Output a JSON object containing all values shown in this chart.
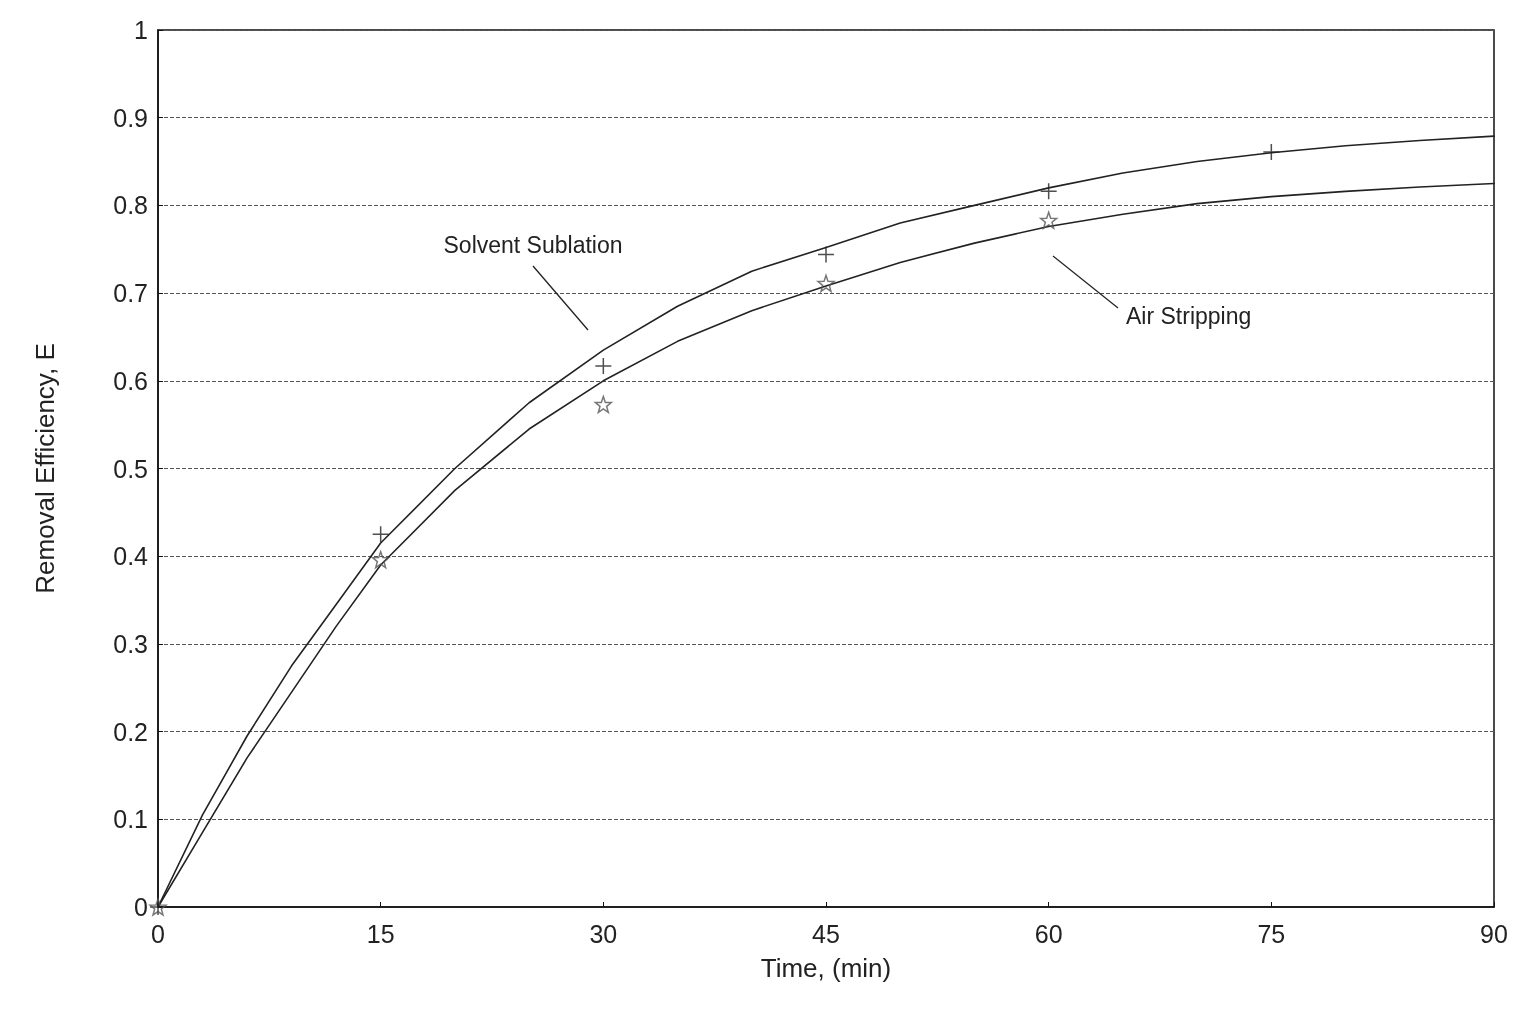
{
  "chart_data": {
    "type": "line",
    "xlabel": "Time, (min)",
    "ylabel": "Removal Efficiency, E",
    "xlim": [
      0,
      90
    ],
    "xticks": [
      0,
      15,
      30,
      45,
      60,
      75,
      90
    ],
    "ylim": [
      0,
      1
    ],
    "yticks": [
      0,
      0.1,
      0.2,
      0.3,
      0.4,
      0.5,
      0.6,
      0.7,
      0.8,
      0.9,
      1
    ],
    "grid": "y",
    "series": [
      {
        "color": "#222222",
        "marker": "none",
        "x": [
          0,
          3,
          6,
          9,
          12,
          15,
          20,
          25,
          30,
          35,
          40,
          45,
          50,
          55,
          60,
          65,
          70,
          75,
          80,
          85,
          90
        ],
        "values": [
          0,
          0.105,
          0.195,
          0.275,
          0.345,
          0.415,
          0.5,
          0.575,
          0.635,
          0.685,
          0.725,
          0.752,
          0.78,
          0.8,
          0.82,
          0.837,
          0.85,
          0.86,
          0.868,
          0.874,
          0.879
        ]
      },
      {
        "color": "#222222",
        "marker": "none",
        "x": [
          0,
          3,
          6,
          9,
          12,
          15,
          20,
          25,
          30,
          35,
          40,
          45,
          50,
          55,
          60,
          65,
          70,
          75,
          80,
          85,
          90
        ],
        "values": [
          0,
          0.085,
          0.17,
          0.245,
          0.32,
          0.39,
          0.475,
          0.545,
          0.6,
          0.645,
          0.68,
          0.708,
          0.735,
          0.757,
          0.776,
          0.79,
          0.802,
          0.81,
          0.816,
          0.821,
          0.825
        ]
      },
      {
        "type": "scatter",
        "color": "#222222",
        "marker": "cross",
        "x": [
          0,
          15,
          30,
          45,
          60,
          75
        ],
        "values": [
          0,
          0.425,
          0.617,
          0.744,
          0.816,
          0.861
        ]
      },
      {
        "type": "scatter",
        "color": "#555555",
        "marker": "star",
        "x": [
          0,
          15,
          30,
          45,
          60
        ],
        "values": [
          0,
          0.396,
          0.573,
          0.711,
          0.783
        ]
      }
    ],
    "annotations": [
      "Solvent Sublation",
      "Air Stripping"
    ]
  }
}
